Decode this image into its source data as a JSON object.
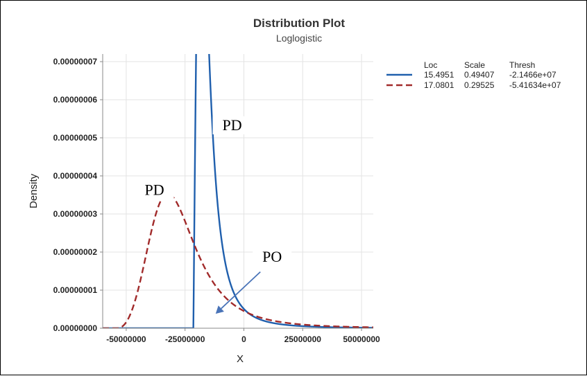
{
  "chart_data": {
    "type": "line",
    "title": "Distribution Plot",
    "subtitle": "Loglogistic",
    "xlabel": "X",
    "ylabel": "Density",
    "xlim": [
      -60000000,
      55000000
    ],
    "ylim": [
      0,
      7.2e-08
    ],
    "x_ticks": [
      -50000000,
      -25000000,
      0,
      25000000,
      50000000
    ],
    "x_tick_labels": [
      "-50000000",
      "-25000000",
      "0",
      "25000000",
      "50000000"
    ],
    "y_ticks": [
      0,
      1e-08,
      2e-08,
      3e-08,
      4e-08,
      5e-08,
      6e-08,
      7e-08
    ],
    "y_tick_labels": [
      "0.00000000",
      "0.00000001",
      "0.00000002",
      "0.00000003",
      "0.00000004",
      "0.00000005",
      "0.00000006",
      "0.00000007"
    ],
    "grid": true,
    "legend_position": "top-right",
    "legend_headers": [
      "Loc",
      "Scale",
      "Thresh"
    ],
    "series": [
      {
        "loc": 15.4951,
        "scale": 0.49407,
        "thresh": -21466000,
        "loc_text": "15.4951",
        "scale_text": "0.49407",
        "thresh_text": "-2.1466e+07",
        "color": "#1f5fad",
        "dash": "solid"
      },
      {
        "loc": 17.0801,
        "scale": 0.29525,
        "thresh": -54163400,
        "loc_text": "17.0801",
        "scale_text": "0.29525",
        "thresh_text": "-5.41634e+07",
        "color": "#a12a2a",
        "dash": "dashed"
      }
    ],
    "annotations": [
      {
        "text": "PD",
        "x": -5000000,
        "y": 5.2e-08
      },
      {
        "text": "PD",
        "x": -38000000,
        "y": 3.5e-08
      },
      {
        "text": "PO",
        "x": 12000000,
        "y": 1.75e-08
      }
    ],
    "arrow": {
      "from": [
        7000000,
        1.48e-08
      ],
      "to": [
        -12000000,
        3.8e-09
      ],
      "color": "#4a74b8"
    }
  }
}
